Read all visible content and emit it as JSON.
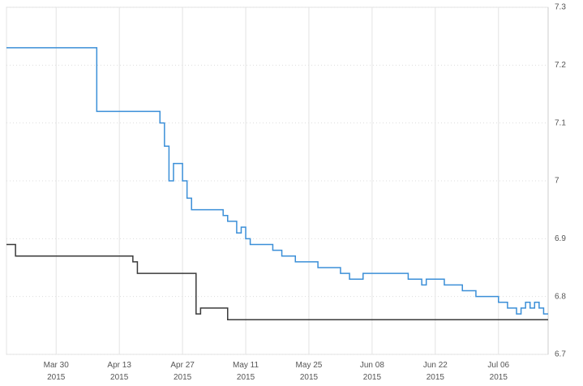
{
  "chart_data": {
    "type": "line",
    "xlim": [
      "2015-03-19",
      "2015-07-17"
    ],
    "xticks": [
      {
        "value": "2015-03-30",
        "label": "Mar 30\n2015"
      },
      {
        "value": "2015-04-13",
        "label": "Apr 13\n2015"
      },
      {
        "value": "2015-04-27",
        "label": "Apr 27\n2015"
      },
      {
        "value": "2015-05-11",
        "label": "May 11\n2015"
      },
      {
        "value": "2015-05-25",
        "label": "May 25\n2015"
      },
      {
        "value": "2015-06-08",
        "label": "Jun 08\n2015"
      },
      {
        "value": "2015-06-22",
        "label": "Jun 22\n2015"
      },
      {
        "value": "2015-07-06",
        "label": "Jul 06\n2015"
      }
    ],
    "ylim": [
      6.7,
      7.3
    ],
    "yticks": [
      6.7,
      6.8,
      6.9,
      7,
      7.1,
      7.2,
      7.3
    ],
    "grid": true,
    "series": [
      {
        "color": "#3b8fd8",
        "x": [
          "2015-03-19",
          "2015-04-08",
          "2015-04-22",
          "2015-04-23",
          "2015-04-24",
          "2015-04-25",
          "2015-04-27",
          "2015-04-28",
          "2015-04-29",
          "2015-05-06",
          "2015-05-07",
          "2015-05-09",
          "2015-05-10",
          "2015-05-11",
          "2015-05-12",
          "2015-05-17",
          "2015-05-19",
          "2015-05-22",
          "2015-05-27",
          "2015-06-01",
          "2015-06-03",
          "2015-06-06",
          "2015-06-16",
          "2015-06-19",
          "2015-06-20",
          "2015-06-24",
          "2015-06-28",
          "2015-07-01",
          "2015-07-06",
          "2015-07-08",
          "2015-07-10",
          "2015-07-11",
          "2015-07-12",
          "2015-07-13",
          "2015-07-14",
          "2015-07-15",
          "2015-07-16"
        ],
        "values": [
          7.23,
          7.12,
          7.1,
          7.06,
          7.0,
          7.03,
          7.0,
          6.97,
          6.95,
          6.94,
          6.93,
          6.91,
          6.92,
          6.9,
          6.89,
          6.88,
          6.87,
          6.86,
          6.85,
          6.84,
          6.83,
          6.84,
          6.83,
          6.82,
          6.83,
          6.82,
          6.81,
          6.8,
          6.79,
          6.78,
          6.77,
          6.78,
          6.79,
          6.78,
          6.79,
          6.78,
          6.77
        ]
      },
      {
        "color": "#3a3a3a",
        "x": [
          "2015-03-19",
          "2015-03-21",
          "2015-04-16",
          "2015-04-17",
          "2015-04-30",
          "2015-05-01",
          "2015-05-07"
        ],
        "values": [
          6.89,
          6.87,
          6.86,
          6.84,
          6.77,
          6.78,
          6.76
        ]
      }
    ]
  }
}
